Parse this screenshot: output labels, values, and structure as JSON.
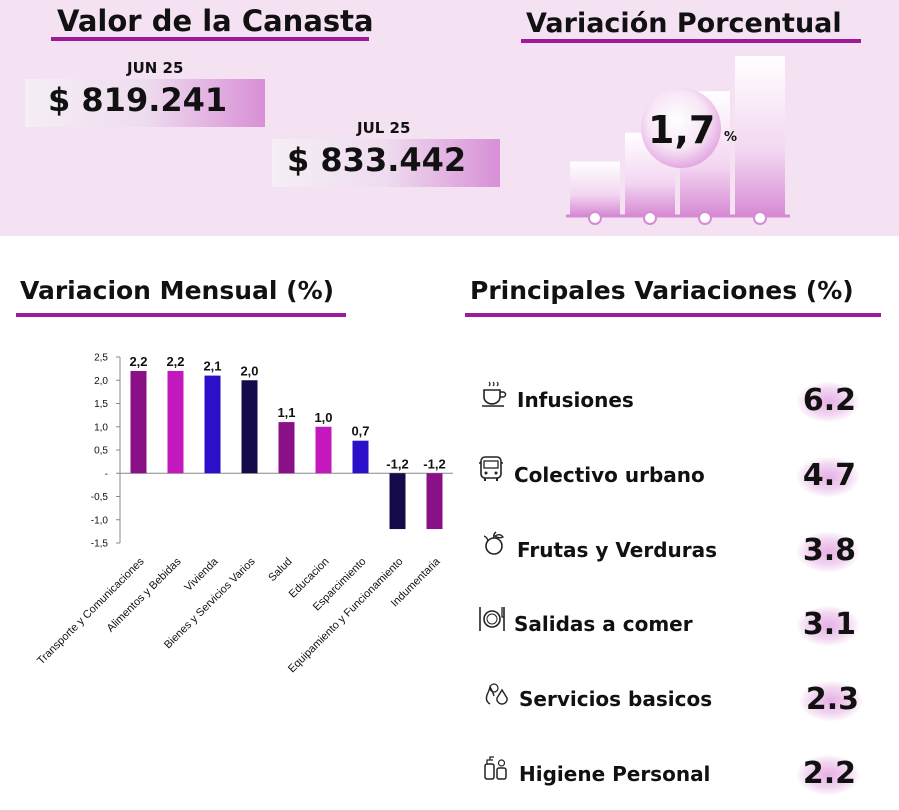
{
  "canasta": {
    "title": "Valor de la Canasta",
    "previous": {
      "month": "JUN 25",
      "value": "$ 819.241"
    },
    "current": {
      "month": "JUL 25",
      "value": "$ 833.442"
    }
  },
  "variacion_porcentual": {
    "title": "Variación Porcentual",
    "value": "1,7",
    "unit": "%"
  },
  "variacion_mensual": {
    "title": "Variacion Mensual (%)"
  },
  "principales": {
    "title": "Principales Variaciones (%)",
    "items": [
      {
        "label": "Infusiones",
        "value": "6.2",
        "icon": "coffee-cup-icon"
      },
      {
        "label": "Colectivo urbano",
        "value": "4.7",
        "icon": "bus-icon"
      },
      {
        "label": "Frutas y Verduras",
        "value": "3.8",
        "icon": "fruit-icon"
      },
      {
        "label": "Salidas a comer",
        "value": "3.1",
        "icon": "plate-cutlery-icon"
      },
      {
        "label": "Servicios basicos",
        "value": "2.3",
        "icon": "utilities-icon"
      },
      {
        "label": "Higiene Personal",
        "value": "2.2",
        "icon": "toiletries-icon"
      }
    ]
  },
  "chart_data": {
    "type": "bar",
    "categories": [
      "Transporte y Comunicaciones",
      "Alimentos y Bebidas",
      "Vivienda",
      "Bienes y Servicios Varios",
      "Salud",
      "Educacion",
      "Esparcimiento",
      "Equipamiento y Funcionamiento",
      "Indumentaria"
    ],
    "values": [
      2.2,
      2.2,
      2.1,
      2.0,
      1.1,
      1.0,
      0.7,
      -1.2,
      -1.2
    ],
    "data_labels": [
      "2,2",
      "2,2",
      "2,1",
      "2,0",
      "1,1",
      "1,0",
      "0,7",
      "-1,2",
      "-1,2"
    ],
    "colors": [
      "#8a1087",
      "#c418bf",
      "#2a10c8",
      "#140c4a",
      "#8a1087",
      "#c418bf",
      "#2a10c8",
      "#140c4a",
      "#8a1087"
    ],
    "yticks": [
      2.5,
      2.0,
      1.5,
      1.0,
      0.5,
      0,
      -0.5,
      -1.0,
      -1.5
    ],
    "ytick_labels": [
      "2,5",
      "2,0",
      "1,5",
      "1,0",
      "0,5",
      "-",
      "-0,5",
      "-1,0",
      "-1,5"
    ],
    "ylim": [
      -1.5,
      2.5
    ],
    "grid": false
  },
  "deco_bars": [
    0.34,
    0.52,
    0.78,
    1.0
  ]
}
